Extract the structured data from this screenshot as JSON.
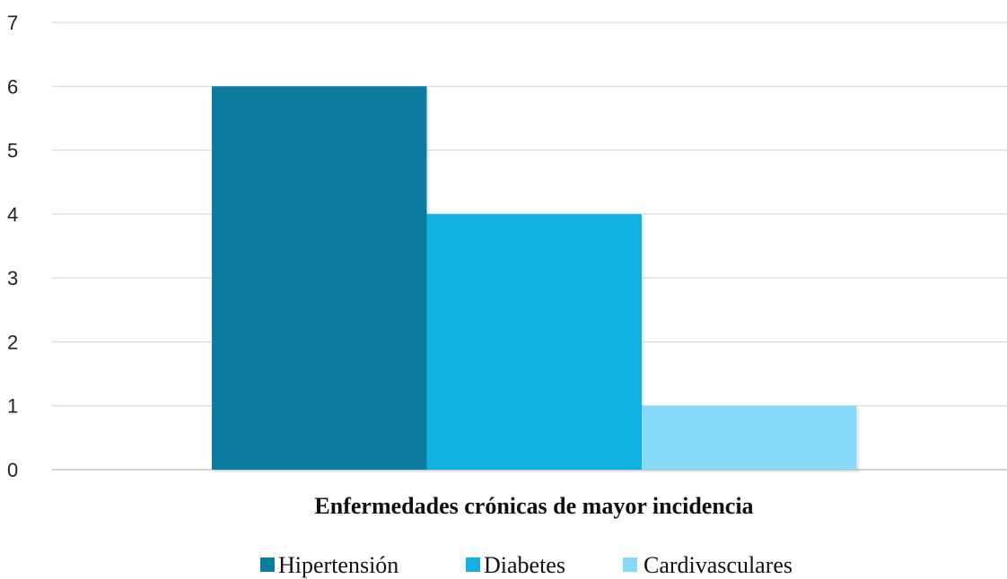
{
  "chart_data": {
    "type": "bar",
    "categories": [
      "Enfermedades crónicas de mayor incidencia"
    ],
    "series": [
      {
        "name": "Hipertensión",
        "values": [
          6
        ],
        "color": "#0c7ba0"
      },
      {
        "name": "Diabetes",
        "values": [
          4
        ],
        "color": "#0fb2e3"
      },
      {
        "name": "Cardivasculares",
        "values": [
          1
        ],
        "color": "#85dbf7"
      }
    ],
    "title": "",
    "xlabel": "Enfermedades crónicas de mayor incidencia",
    "ylabel": "",
    "ylim": [
      0,
      7
    ],
    "yticks": [
      0,
      1,
      2,
      3,
      4,
      5,
      6,
      7
    ],
    "grid": true,
    "legend_position": "bottom"
  }
}
